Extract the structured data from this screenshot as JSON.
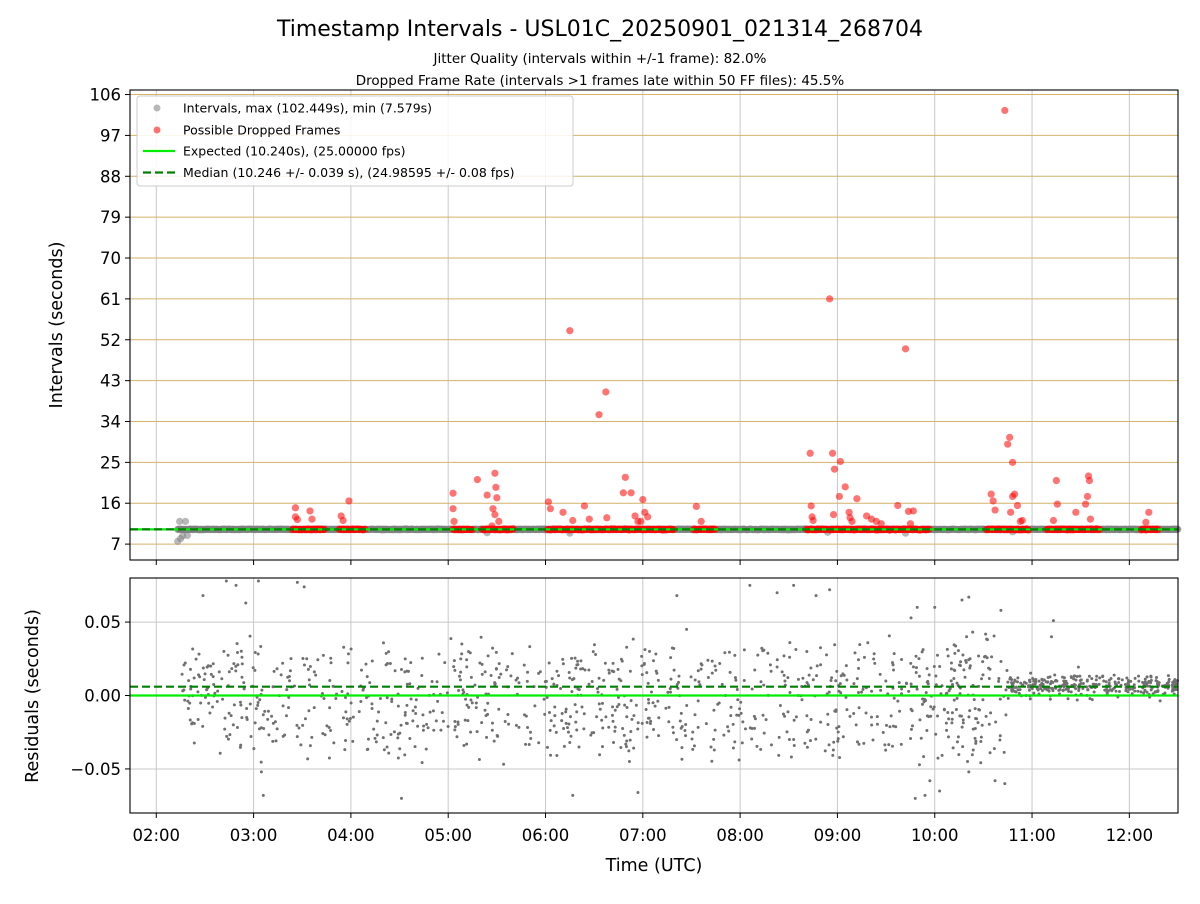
{
  "chart_data": [
    {
      "type": "scatter",
      "title": "Timestamp Intervals - USL01C_20250901_021314_268704",
      "subtitle_lines": [
        "Jitter Quality (intervals within +/-1 frame): 82.0%",
        "Dropped Frame Rate (intervals >1 frames late within 50 FF files): 45.5%"
      ],
      "xlabel": "",
      "ylabel": "Intervals (seconds)",
      "x_unit": "hours UTC",
      "xlim": [
        1.73,
        12.5
      ],
      "ylim": [
        3.5,
        107
      ],
      "yticks": [
        7,
        16,
        25,
        34,
        43,
        52,
        61,
        70,
        79,
        88,
        97,
        106
      ],
      "grid": true,
      "legend_position": "upper-left",
      "legend": [
        "Intervals, max (102.449s), min (7.579s)",
        "Possible Dropped Frames",
        "Expected (10.240s), (25.00000 fps)",
        "Median (10.246 +/- 0.039 s), (24.98595 +/- 0.08 fps)"
      ],
      "expected": 10.24,
      "median": 10.246,
      "colors": {
        "intervals": "#808080",
        "dropped": "#ff0000",
        "expected": "#00ee00",
        "median": "#008000",
        "hgrid": "#d4b26a",
        "vgrid": "#c8c8c8"
      },
      "normal_runs": [
        {
          "x": [
            2.22,
            12.5
          ],
          "y": 10.24
        }
      ],
      "normal_points": [
        [
          2.24,
          12.0
        ],
        [
          2.25,
          8.2
        ],
        [
          2.27,
          8.8
        ],
        [
          2.3,
          12.0
        ],
        [
          2.32,
          8.9
        ],
        [
          2.22,
          7.6
        ],
        [
          8.9,
          9.6
        ],
        [
          6.25,
          9.4
        ],
        [
          5.4,
          9.5
        ],
        [
          9.7,
          9.4
        ],
        [
          10.8,
          9.7
        ]
      ],
      "dropped_runs": [
        {
          "x": [
            3.4,
            3.73
          ],
          "y": 10.24
        },
        {
          "x": [
            3.88,
            4.15
          ],
          "y": 10.24
        },
        {
          "x": [
            5.05,
            5.25
          ],
          "y": 10.24
        },
        {
          "x": [
            5.35,
            5.67
          ],
          "y": 10.24
        },
        {
          "x": [
            6.02,
            7.32
          ],
          "y": 10.24
        },
        {
          "x": [
            7.52,
            7.75
          ],
          "y": 10.24
        },
        {
          "x": [
            8.68,
            8.9
          ],
          "y": 10.24
        },
        {
          "x": [
            8.92,
            9.95
          ],
          "y": 10.24
        },
        {
          "x": [
            10.53,
            10.78
          ],
          "y": 10.24
        },
        {
          "x": [
            10.78,
            10.97
          ],
          "y": 10.24
        },
        {
          "x": [
            11.15,
            11.7
          ],
          "y": 10.24
        },
        {
          "x": [
            12.12,
            12.3
          ],
          "y": 10.24
        }
      ],
      "dropped_points": [
        [
          3.43,
          15.0
        ],
        [
          3.43,
          13.0
        ],
        [
          3.45,
          12.4
        ],
        [
          3.58,
          14.3
        ],
        [
          3.6,
          12.5
        ],
        [
          3.9,
          13.2
        ],
        [
          3.92,
          12.2
        ],
        [
          3.98,
          16.5
        ],
        [
          5.05,
          18.2
        ],
        [
          5.05,
          14.8
        ],
        [
          5.06,
          12.0
        ],
        [
          5.3,
          21.2
        ],
        [
          5.4,
          17.8
        ],
        [
          5.45,
          11.0
        ],
        [
          5.48,
          22.6
        ],
        [
          5.49,
          19.5
        ],
        [
          5.5,
          17.2
        ],
        [
          5.46,
          14.8
        ],
        [
          5.48,
          13.5
        ],
        [
          5.52,
          12.0
        ],
        [
          6.03,
          16.3
        ],
        [
          6.05,
          14.8
        ],
        [
          6.18,
          14.0
        ],
        [
          6.25,
          54.0
        ],
        [
          6.28,
          12.2
        ],
        [
          6.4,
          15.4
        ],
        [
          6.45,
          12.5
        ],
        [
          6.55,
          35.5
        ],
        [
          6.62,
          40.5
        ],
        [
          6.63,
          12.8
        ],
        [
          6.8,
          18.3
        ],
        [
          6.82,
          21.7
        ],
        [
          6.88,
          18.3
        ],
        [
          6.92,
          13.2
        ],
        [
          6.95,
          12.0
        ],
        [
          7.0,
          16.8
        ],
        [
          7.02,
          14.0
        ],
        [
          7.05,
          13.0
        ],
        [
          6.98,
          12.0
        ],
        [
          7.55,
          15.3
        ],
        [
          7.6,
          12.0
        ],
        [
          8.72,
          27.0
        ],
        [
          8.73,
          15.4
        ],
        [
          8.74,
          13.0
        ],
        [
          8.75,
          12.2
        ],
        [
          8.92,
          61.0
        ],
        [
          8.95,
          27.0
        ],
        [
          8.97,
          23.5
        ],
        [
          8.96,
          13.5
        ],
        [
          9.03,
          25.2
        ],
        [
          9.02,
          17.5
        ],
        [
          9.08,
          19.6
        ],
        [
          9.12,
          14.0
        ],
        [
          9.13,
          12.8
        ],
        [
          9.15,
          12.0
        ],
        [
          9.2,
          17.0
        ],
        [
          9.3,
          13.2
        ],
        [
          9.35,
          12.5
        ],
        [
          9.4,
          12.0
        ],
        [
          9.45,
          11.5
        ],
        [
          9.62,
          15.5
        ],
        [
          9.7,
          50.0
        ],
        [
          9.73,
          14.2
        ],
        [
          9.78,
          14.3
        ],
        [
          9.75,
          11.5
        ],
        [
          10.58,
          18.0
        ],
        [
          10.6,
          16.5
        ],
        [
          10.62,
          14.5
        ],
        [
          10.72,
          102.5
        ],
        [
          10.75,
          29.0
        ],
        [
          10.77,
          30.5
        ],
        [
          10.78,
          14.0
        ],
        [
          10.8,
          25.0
        ],
        [
          10.82,
          18.0
        ],
        [
          10.8,
          17.5
        ],
        [
          10.85,
          15.5
        ],
        [
          10.88,
          12.0
        ],
        [
          10.9,
          12.2
        ],
        [
          11.22,
          12.2
        ],
        [
          11.25,
          21.0
        ],
        [
          11.26,
          15.8
        ],
        [
          11.45,
          14.0
        ],
        [
          11.55,
          15.8
        ],
        [
          11.57,
          17.5
        ],
        [
          11.58,
          22.0
        ],
        [
          11.59,
          21.0
        ],
        [
          11.6,
          12.5
        ],
        [
          12.17,
          11.8
        ],
        [
          12.2,
          14.0
        ]
      ]
    },
    {
      "type": "scatter",
      "xlabel": "Time (UTC)",
      "ylabel": "Residuals (seconds)",
      "xlim": [
        1.73,
        12.5
      ],
      "ylim": [
        -0.08,
        0.08
      ],
      "ytick_values": [
        -0.05,
        0.0,
        0.05
      ],
      "ytick_labels": [
        "−0.05",
        "0.00",
        "0.05"
      ],
      "xtick_values": [
        2,
        3,
        4,
        5,
        6,
        7,
        8,
        9,
        10,
        11,
        12
      ],
      "xtick_labels": [
        "02:00",
        "03:00",
        "04:00",
        "05:00",
        "06:00",
        "07:00",
        "08:00",
        "09:00",
        "10:00",
        "11:00",
        "12:00"
      ],
      "grid": true,
      "expected_residual": 0.0,
      "median_residual": 0.006,
      "colors": {
        "points": "#707070",
        "expected": "#00ee00",
        "median": "#008000",
        "grid": "#c8c8c8"
      },
      "residual_segments": [
        {
          "x": [
            2.25,
            2.6
          ],
          "center": 0.002,
          "spread": 0.035,
          "density": 140
        },
        {
          "x": [
            2.6,
            10.75
          ],
          "center": -0.004,
          "spread": 0.045,
          "density": 110
        },
        {
          "x": [
            9.55,
            10.75
          ],
          "center": 0.005,
          "spread": 0.055,
          "density": 45
        },
        {
          "x": [
            10.75,
            12.5
          ],
          "center": 0.0065,
          "spread": 0.006,
          "density": 180
        }
      ],
      "outlier_points": [
        [
          2.48,
          0.068
        ],
        [
          2.72,
          0.078
        ],
        [
          2.82,
          0.075
        ],
        [
          3.05,
          0.078
        ],
        [
          3.45,
          0.077
        ],
        [
          3.52,
          0.074
        ],
        [
          2.92,
          0.063
        ],
        [
          3.1,
          -0.068
        ],
        [
          4.52,
          -0.07
        ],
        [
          7.35,
          0.068
        ],
        [
          7.45,
          0.045
        ],
        [
          8.1,
          0.075
        ],
        [
          8.38,
          0.07
        ],
        [
          8.55,
          0.075
        ],
        [
          8.92,
          0.072
        ],
        [
          8.78,
          0.068
        ],
        [
          9.82,
          0.06
        ],
        [
          10.0,
          0.06
        ],
        [
          10.28,
          0.065
        ],
        [
          10.35,
          0.067
        ],
        [
          10.68,
          0.058
        ],
        [
          9.8,
          -0.07
        ],
        [
          9.9,
          -0.068
        ],
        [
          10.05,
          -0.065
        ],
        [
          10.62,
          -0.058
        ],
        [
          10.72,
          -0.06
        ],
        [
          11.22,
          0.051
        ],
        [
          11.2,
          0.04
        ],
        [
          6.95,
          -0.066
        ],
        [
          6.28,
          -0.068
        ],
        [
          9.95,
          -0.058
        ],
        [
          10.35,
          -0.052
        ],
        [
          3.08,
          -0.052
        ]
      ]
    }
  ]
}
